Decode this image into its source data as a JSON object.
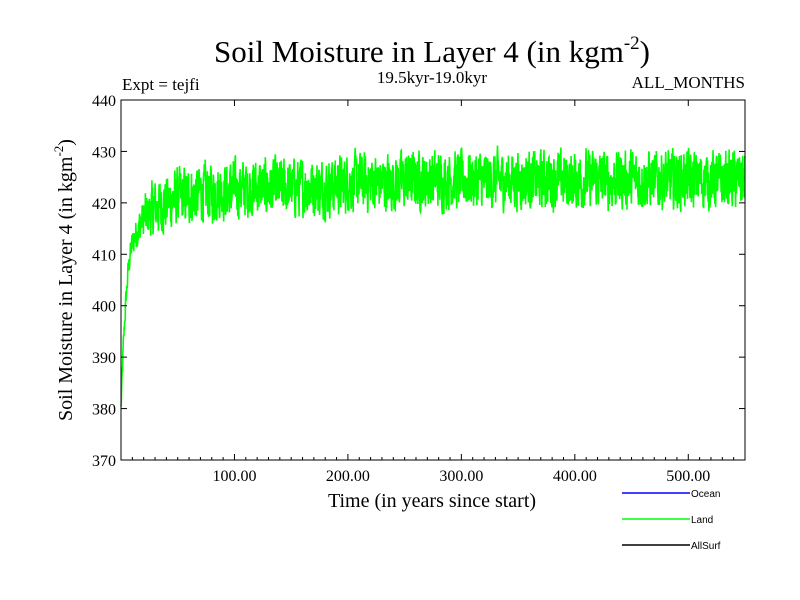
{
  "chart_data": {
    "type": "line",
    "title": "Soil Moisture in Layer 4 (in kgm",
    "title_sup": "-2",
    "title_close": ")",
    "expt_label": "Expt = tejfi",
    "period_label": "19.5kyr-19.0kyr",
    "months_label": "ALL_MONTHS",
    "xlabel": "Time (in years since start)",
    "ylabel": "Soil Moisture in Layer 4 (in kgm",
    "ylabel_sup": "-2",
    "ylabel_close": ")",
    "xlim": [
      0,
      550
    ],
    "ylim": [
      370,
      440
    ],
    "x_ticks": [
      100,
      200,
      300,
      400,
      500
    ],
    "x_tick_labels": [
      "100.00",
      "200.00",
      "300.00",
      "400.00",
      "500.00"
    ],
    "y_ticks": [
      370,
      380,
      390,
      400,
      410,
      420,
      430,
      440
    ],
    "y_tick_labels": [
      "370",
      "380",
      "390",
      "400",
      "410",
      "420",
      "430",
      "440"
    ],
    "legend": [
      {
        "name": "Ocean",
        "color": "#0000ff"
      },
      {
        "name": "Land",
        "color": "#00ff00"
      },
      {
        "name": "AllSurf",
        "color": "#000000"
      }
    ],
    "series": [
      {
        "name": "Land",
        "color": "#00ff00",
        "x": [
          0,
          2,
          4,
          6,
          8,
          10,
          15,
          20,
          25,
          30,
          40,
          50,
          60,
          70,
          80,
          90,
          100,
          120,
          140,
          160,
          180,
          200,
          220,
          240,
          260,
          280,
          300,
          320,
          340,
          360,
          380,
          400,
          420,
          440,
          460,
          480,
          500,
          520,
          540,
          550
        ],
        "values": [
          380,
          392,
          400,
          406,
          410,
          412,
          415,
          417,
          418,
          419,
          420,
          421,
          421.5,
          422,
          422,
          422.5,
          422.5,
          423,
          423,
          423,
          423,
          424,
          424,
          424,
          424.5,
          424.5,
          424.5,
          424.5,
          424.5,
          424.5,
          424.5,
          424.5,
          424.5,
          424.5,
          424.5,
          424.5,
          424.5,
          424.5,
          424.5,
          424.5
        ],
        "noise_amplitude": 9,
        "min": 378,
        "max": 433.5
      }
    ]
  }
}
